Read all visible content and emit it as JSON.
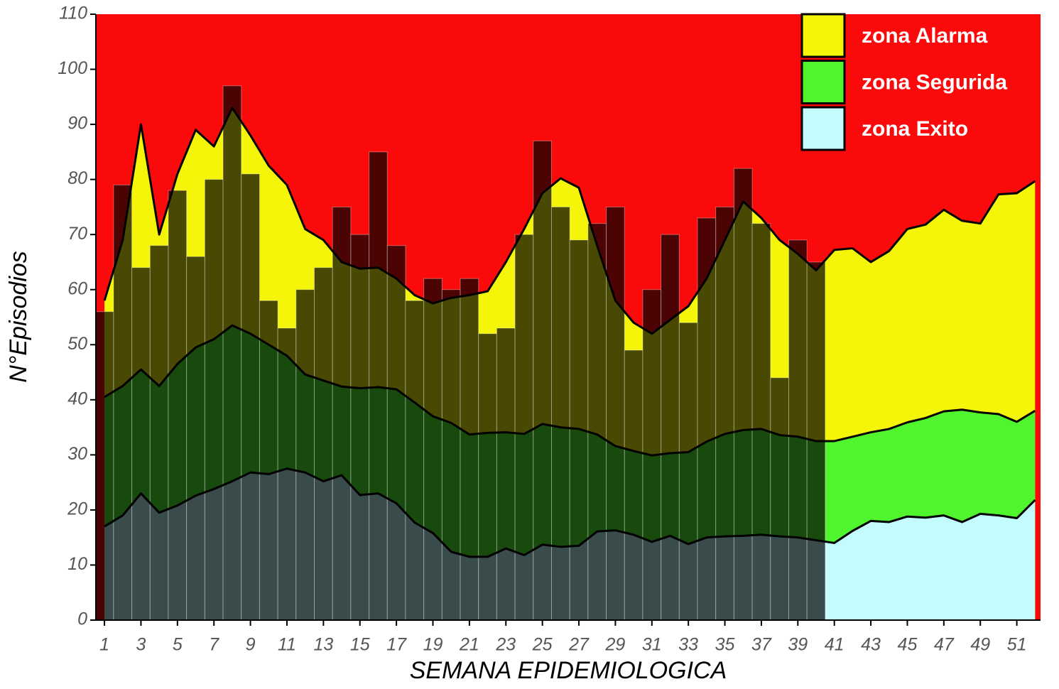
{
  "chart_data": {
    "type": "area",
    "xlabel": "SEMANA EPIDEMIOLOGICA",
    "ylabel": "N°Episodios",
    "background_color": "#fa0a0a",
    "xlim": [
      0.53,
      52.3
    ],
    "ylim": [
      0,
      110
    ],
    "xticks": [
      1,
      3,
      5,
      7,
      9,
      11,
      13,
      15,
      17,
      19,
      21,
      23,
      25,
      27,
      29,
      31,
      33,
      35,
      37,
      39,
      41,
      43,
      45,
      47,
      49,
      51
    ],
    "yticks": [
      0,
      10,
      20,
      30,
      40,
      50,
      60,
      70,
      80,
      90,
      100,
      110
    ],
    "x": [
      1,
      2,
      3,
      4,
      5,
      6,
      7,
      8,
      9,
      10,
      11,
      12,
      13,
      14,
      15,
      16,
      17,
      18,
      19,
      20,
      21,
      22,
      23,
      24,
      25,
      26,
      27,
      28,
      29,
      30,
      31,
      32,
      33,
      34,
      35,
      36,
      37,
      38,
      39,
      40,
      41,
      42,
      43,
      44,
      45,
      46,
      47,
      48,
      49,
      50,
      51,
      52
    ],
    "series": [
      {
        "name": "zona Alarma",
        "color": "#f5f50a",
        "values": [
          58,
          69,
          90,
          70,
          81,
          89,
          86,
          93,
          88,
          82.5,
          79,
          71,
          69,
          65,
          63.8,
          64,
          62,
          59,
          57.5,
          58.5,
          59,
          59.7,
          65,
          71,
          77.5,
          80.2,
          78.5,
          68,
          58,
          54,
          52,
          54.5,
          57,
          62,
          69,
          76,
          73,
          69,
          66.5,
          63.5,
          67.2,
          67.5,
          65,
          67,
          71,
          71.8,
          74.5,
          72.5,
          72,
          77.3,
          77.5,
          79.7
        ]
      },
      {
        "name": "zona Segurida",
        "color": "#50f52d",
        "values": [
          40.5,
          42.5,
          45.5,
          42.5,
          46.5,
          49.5,
          51,
          53.5,
          52,
          50,
          48,
          44.6,
          43.5,
          42.4,
          42.1,
          42.3,
          41.9,
          39.5,
          37,
          35.8,
          33.7,
          34,
          34.1,
          33.8,
          35.6,
          35,
          34.7,
          33.7,
          31.6,
          30.7,
          29.9,
          30.3,
          30.5,
          32.4,
          33.8,
          34.5,
          34.7,
          33.6,
          33.3,
          32.5,
          32.5,
          33.3,
          34.1,
          34.7,
          35.9,
          36.7,
          37.9,
          38.2,
          37.7,
          37.4,
          36,
          38
        ]
      },
      {
        "name": "zona Exito",
        "color": "#c4fbfc",
        "values": [
          17,
          19,
          23,
          19.5,
          20.8,
          22.6,
          23.8,
          25.2,
          26.8,
          26.5,
          27.5,
          26.8,
          25.2,
          26.3,
          22.7,
          23,
          21.2,
          17.7,
          15.8,
          12.4,
          11.5,
          11.5,
          13,
          11.8,
          13.7,
          13.3,
          13.5,
          16.1,
          16.3,
          15.5,
          14.2,
          15.3,
          13.8,
          15,
          15.2,
          15.3,
          15.5,
          15.2,
          15,
          14.5,
          14,
          16.2,
          18,
          17.8,
          18.8,
          18.6,
          19,
          17.8,
          19.3,
          19,
          18.5,
          21.8
        ]
      }
    ],
    "bars": {
      "x": [
        1,
        2,
        3,
        4,
        5,
        6,
        7,
        8,
        9,
        10,
        11,
        12,
        13,
        14,
        15,
        16,
        17,
        18,
        19,
        20,
        21,
        22,
        23,
        24,
        25,
        26,
        27,
        28,
        29,
        30,
        31,
        32,
        33,
        34,
        35,
        36,
        37,
        38,
        39,
        40
      ],
      "values": [
        56,
        79,
        64,
        68,
        78,
        66,
        80,
        97,
        81,
        58,
        53,
        60,
        64,
        75,
        70,
        85,
        68,
        58,
        62,
        60,
        62,
        52,
        53,
        70,
        87,
        75,
        69,
        72,
        75,
        49,
        60,
        70,
        54,
        73,
        75,
        82,
        72,
        44,
        69,
        65
      ]
    }
  }
}
